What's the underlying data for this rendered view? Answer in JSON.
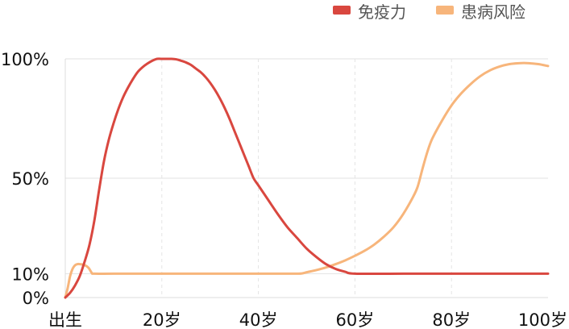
{
  "chart_data": {
    "type": "line",
    "title": "",
    "xlabel": "",
    "ylabel": "",
    "x_ticks": [
      {
        "x": 0,
        "label": "出生"
      },
      {
        "x": 20,
        "label": "20岁"
      },
      {
        "x": 40,
        "label": "40岁"
      },
      {
        "x": 60,
        "label": "60岁"
      },
      {
        "x": 80,
        "label": "80岁"
      },
      {
        "x": 100,
        "label": "100岁"
      }
    ],
    "y_ticks": [
      {
        "y": 0,
        "label": "0%"
      },
      {
        "y": 10,
        "label": "10%"
      },
      {
        "y": 50,
        "label": "50%"
      },
      {
        "y": 100,
        "label": "100%"
      }
    ],
    "xlim": [
      0,
      100
    ],
    "ylim": [
      0,
      100
    ],
    "grid": {
      "horizontal": true,
      "vertical_dashed": true
    },
    "legend_position": "top-right",
    "series": [
      {
        "name": "免疫力",
        "color": "#d9473f",
        "points": [
          [
            0,
            0
          ],
          [
            1,
            2
          ],
          [
            2,
            5
          ],
          [
            3,
            9
          ],
          [
            4,
            15
          ],
          [
            5,
            22
          ],
          [
            6,
            32
          ],
          [
            7,
            45
          ],
          [
            8,
            57
          ],
          [
            9,
            66
          ],
          [
            10,
            73
          ],
          [
            11,
            79
          ],
          [
            12,
            84
          ],
          [
            13,
            88
          ],
          [
            14,
            91.5
          ],
          [
            15,
            94.5
          ],
          [
            16,
            96.5
          ],
          [
            17,
            98
          ],
          [
            18,
            99.2
          ],
          [
            19,
            100
          ],
          [
            20,
            100
          ],
          [
            22,
            100
          ],
          [
            23,
            99.8
          ],
          [
            24,
            99.2
          ],
          [
            25,
            98.5
          ],
          [
            26,
            97.5
          ],
          [
            27,
            96
          ],
          [
            28,
            94.5
          ],
          [
            29,
            92.5
          ],
          [
            30,
            90
          ],
          [
            31,
            87
          ],
          [
            32,
            83.5
          ],
          [
            33,
            79.5
          ],
          [
            34,
            75
          ],
          [
            35,
            70
          ],
          [
            36,
            65
          ],
          [
            37,
            60
          ],
          [
            38,
            55
          ],
          [
            39,
            50
          ],
          [
            40,
            47
          ],
          [
            42,
            41
          ],
          [
            44,
            35
          ],
          [
            46,
            29.5
          ],
          [
            48,
            25
          ],
          [
            50,
            20.5
          ],
          [
            52,
            17
          ],
          [
            54,
            14
          ],
          [
            56,
            12
          ],
          [
            58,
            10.8
          ],
          [
            60,
            10
          ],
          [
            70,
            10
          ],
          [
            80,
            10
          ],
          [
            90,
            10
          ],
          [
            100,
            10
          ]
        ]
      },
      {
        "name": "患病风险",
        "color": "#f7b57b",
        "points": [
          [
            0,
            0
          ],
          [
            0.5,
            4
          ],
          [
            1,
            9
          ],
          [
            1.5,
            12
          ],
          [
            2,
            13.5
          ],
          [
            2.5,
            14
          ],
          [
            3,
            14
          ],
          [
            4,
            13.6
          ],
          [
            4.8,
            12.5
          ],
          [
            5.5,
            10.3
          ],
          [
            6,
            10
          ],
          [
            10,
            10
          ],
          [
            20,
            10
          ],
          [
            30,
            10
          ],
          [
            40,
            10
          ],
          [
            45,
            10
          ],
          [
            48,
            10
          ],
          [
            49,
            10.1
          ],
          [
            50,
            10.6
          ],
          [
            52,
            11.5
          ],
          [
            54,
            12.6
          ],
          [
            56,
            14
          ],
          [
            58,
            15.6
          ],
          [
            60,
            17.5
          ],
          [
            62,
            19.6
          ],
          [
            64,
            22.2
          ],
          [
            66,
            25.5
          ],
          [
            68,
            29.5
          ],
          [
            70,
            35
          ],
          [
            72,
            42
          ],
          [
            73,
            46.5
          ],
          [
            74,
            54
          ],
          [
            75,
            61
          ],
          [
            76,
            66.5
          ],
          [
            78,
            74
          ],
          [
            80,
            80.5
          ],
          [
            82,
            85.5
          ],
          [
            84,
            89.5
          ],
          [
            86,
            92.8
          ],
          [
            88,
            95.2
          ],
          [
            90,
            96.8
          ],
          [
            92,
            97.8
          ],
          [
            94,
            98.2
          ],
          [
            96,
            98.2
          ],
          [
            98,
            97.8
          ],
          [
            100,
            97
          ]
        ]
      }
    ]
  }
}
